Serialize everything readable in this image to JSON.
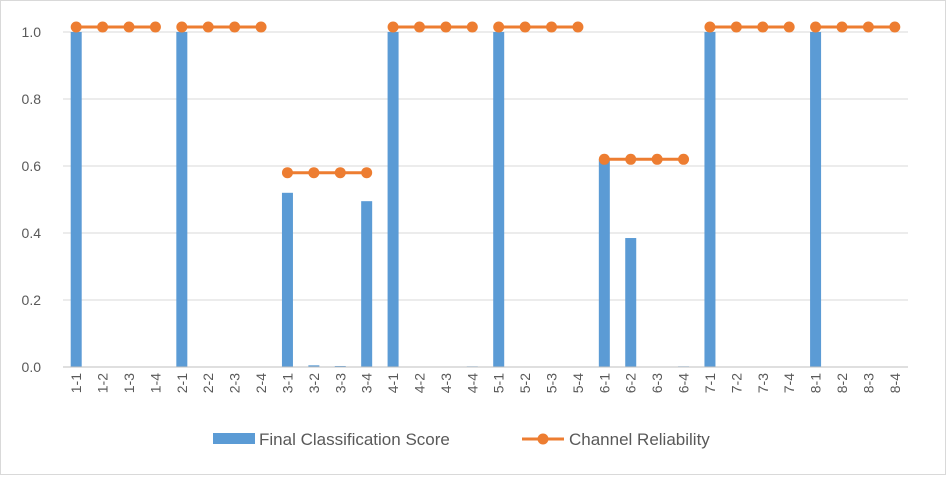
{
  "chart_data": {
    "type": "bar",
    "categories": [
      "1-1",
      "1-2",
      "1-3",
      "1-4",
      "2-1",
      "2-2",
      "2-3",
      "2-4",
      "3-1",
      "3-2",
      "3-3",
      "3-4",
      "4-1",
      "4-2",
      "4-3",
      "4-4",
      "5-1",
      "5-2",
      "5-3",
      "5-4",
      "6-1",
      "6-2",
      "6-3",
      "6-4",
      "7-1",
      "7-2",
      "7-3",
      "7-4",
      "8-1",
      "8-2",
      "8-3",
      "8-4"
    ],
    "y_ticks": [
      "0.0",
      "0.2",
      "0.4",
      "0.6",
      "0.8",
      "1.0"
    ],
    "ylim": [
      0,
      1.0
    ],
    "grid": "horizontal",
    "legend_position": "bottom",
    "series": [
      {
        "name": "Final Classification Score",
        "type": "bar",
        "color": "#5b9bd5",
        "values": [
          1.0,
          0,
          0,
          0,
          1.0,
          0,
          0,
          0,
          0.52,
          0.005,
          0.003,
          0.495,
          1.0,
          0,
          0,
          0.002,
          1.0,
          0,
          0,
          0,
          0.62,
          0.385,
          0,
          0.002,
          1.0,
          0,
          0,
          0,
          1.0,
          0,
          0,
          0
        ]
      },
      {
        "name": "Channel Reliability",
        "type": "line",
        "color": "#ed7d31",
        "groups": [
          {
            "categories": [
              "1-1",
              "1-2",
              "1-3",
              "1-4"
            ],
            "values": [
              1.015,
              1.015,
              1.015,
              1.015
            ]
          },
          {
            "categories": [
              "2-1",
              "2-2",
              "2-3",
              "2-4"
            ],
            "values": [
              1.015,
              1.015,
              1.015,
              1.015
            ]
          },
          {
            "categories": [
              "3-1",
              "3-2",
              "3-3",
              "3-4"
            ],
            "values": [
              0.58,
              0.58,
              0.58,
              0.58
            ]
          },
          {
            "categories": [
              "4-1",
              "4-2",
              "4-3",
              "4-4"
            ],
            "values": [
              1.015,
              1.015,
              1.015,
              1.015
            ]
          },
          {
            "categories": [
              "5-1",
              "5-2",
              "5-3",
              "5-4"
            ],
            "values": [
              1.015,
              1.015,
              1.015,
              1.015
            ]
          },
          {
            "categories": [
              "6-1",
              "6-2",
              "6-3",
              "6-4"
            ],
            "values": [
              0.62,
              0.62,
              0.62,
              0.62
            ]
          },
          {
            "categories": [
              "7-1",
              "7-2",
              "7-3",
              "7-4"
            ],
            "values": [
              1.015,
              1.015,
              1.015,
              1.015
            ]
          },
          {
            "categories": [
              "8-1",
              "8-2",
              "8-3",
              "8-4"
            ],
            "values": [
              1.015,
              1.015,
              1.015,
              1.015
            ]
          }
        ]
      }
    ],
    "gridline_color": "#d9d9d9",
    "axis_color": "#bfbfbf"
  }
}
